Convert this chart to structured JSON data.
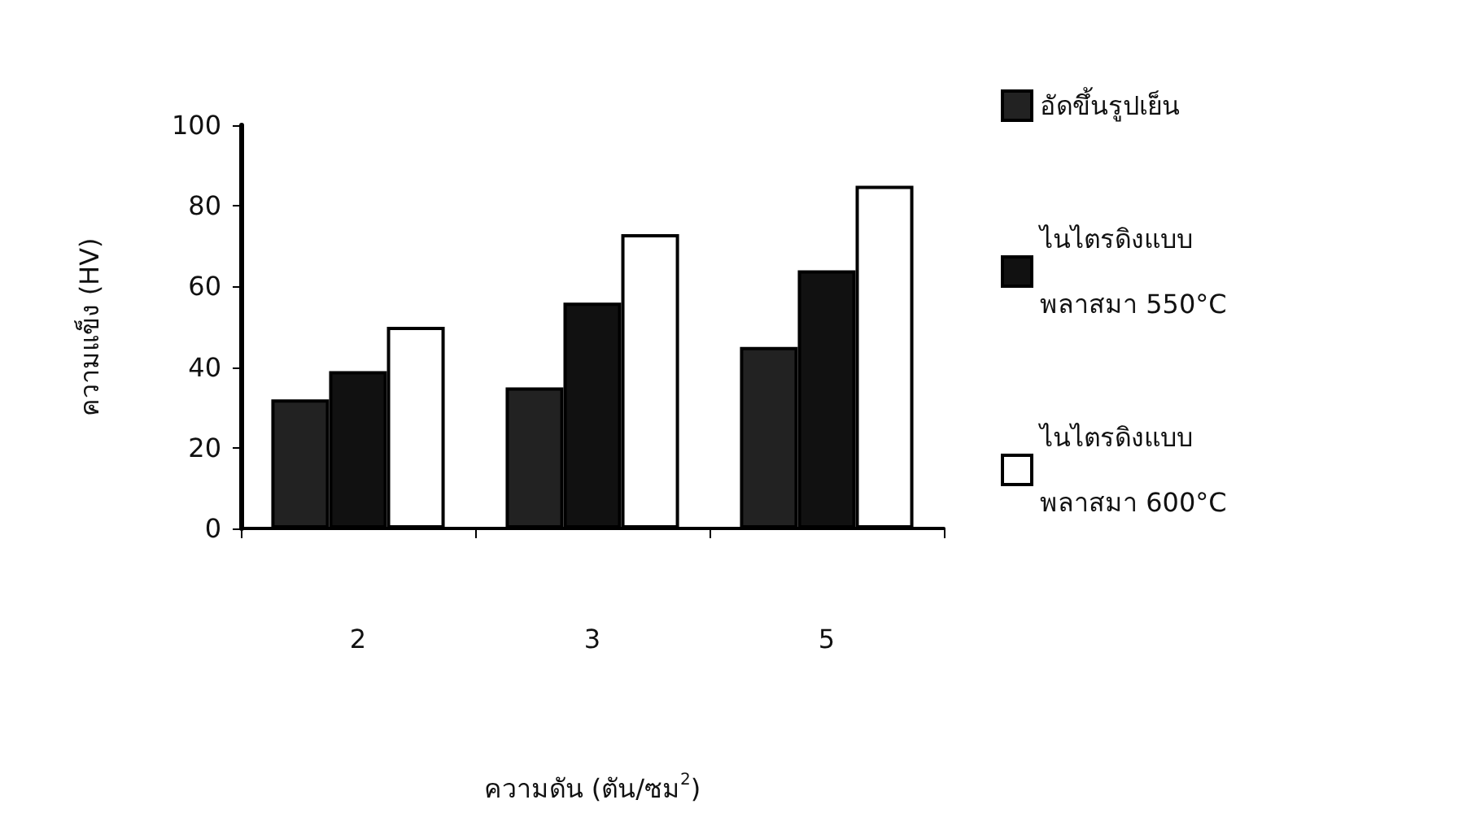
{
  "chart_data": {
    "type": "bar",
    "xlabel": "ความดัน (ตัน/ซม$^{2}$)",
    "ylabel": "ความแข็ง (HV)",
    "categories": [
      "2",
      "3",
      "5"
    ],
    "series": [
      {
        "name": "อัดขึ้นรูปเย็น",
        "color": "#222222",
        "values": [
          32,
          35,
          45
        ]
      },
      {
        "name": "ไนไตรดิงแบบ\nพลาสมา 550°C",
        "color": "#111111",
        "values": [
          39,
          56,
          64
        ]
      },
      {
        "name": "ไนไตรดิงแบบ\nพลาสมา 600°C",
        "color": "#ffffff",
        "values": [
          50,
          73,
          85
        ]
      }
    ],
    "ylim": [
      0,
      100
    ],
    "yticks": [
      0,
      20,
      40,
      60,
      80,
      100
    ],
    "grid": false,
    "legend": "right"
  }
}
